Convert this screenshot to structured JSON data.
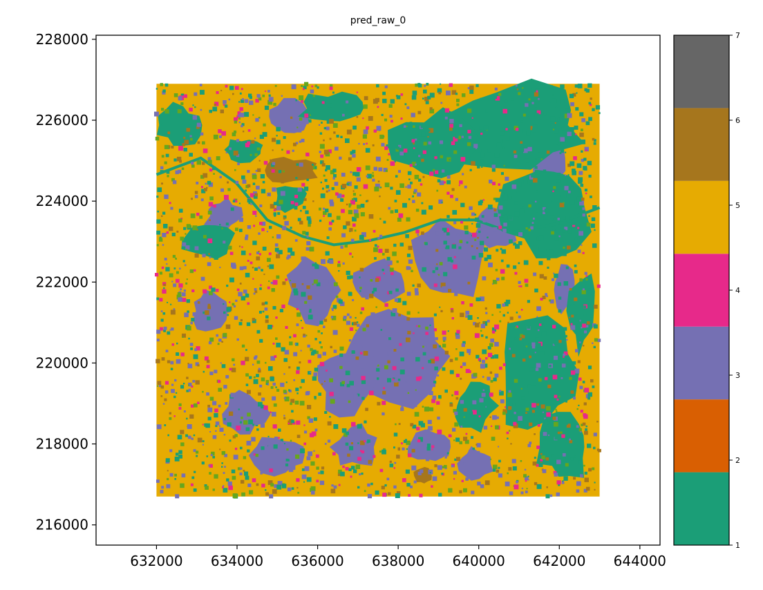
{
  "chart_data": {
    "type": "heatmap",
    "title": "pred_raw_0",
    "xlabel": "",
    "ylabel": "",
    "xlim": [
      630500,
      644500
    ],
    "ylim": [
      215500,
      228100
    ],
    "x_ticks": [
      "632000",
      "634000",
      "636000",
      "638000",
      "640000",
      "642000",
      "644000"
    ],
    "y_ticks": [
      "216000",
      "218000",
      "220000",
      "222000",
      "224000",
      "226000",
      "228000"
    ],
    "raster_extent": {
      "x": [
        632000,
        643000
      ],
      "y": [
        216700,
        226900
      ]
    },
    "colorbar": {
      "range": [
        1,
        7
      ],
      "ticks": [
        "1",
        "2",
        "3",
        "4",
        "5",
        "6",
        "7"
      ],
      "classes": [
        {
          "value": 1,
          "color": "#1b9e77"
        },
        {
          "value": 2,
          "color": "#d95f02"
        },
        {
          "value": 3,
          "color": "#7570b3"
        },
        {
          "value": 4,
          "color": "#e7298a"
        },
        {
          "value": 5,
          "color": "#e6ab02"
        },
        {
          "value": 6,
          "color": "#a6761d"
        },
        {
          "value": 7,
          "color": "#666666"
        }
      ]
    },
    "class_map_colors": {
      "class_1": "#1b9e77",
      "class_3": "#7570b3",
      "class_4": "#e7298a",
      "class_5": "#e6ab02",
      "class_6": "#a6761d",
      "grass_green": "#66a61e"
    },
    "dominant_classes": [
      5,
      3,
      1,
      4,
      6
    ]
  }
}
